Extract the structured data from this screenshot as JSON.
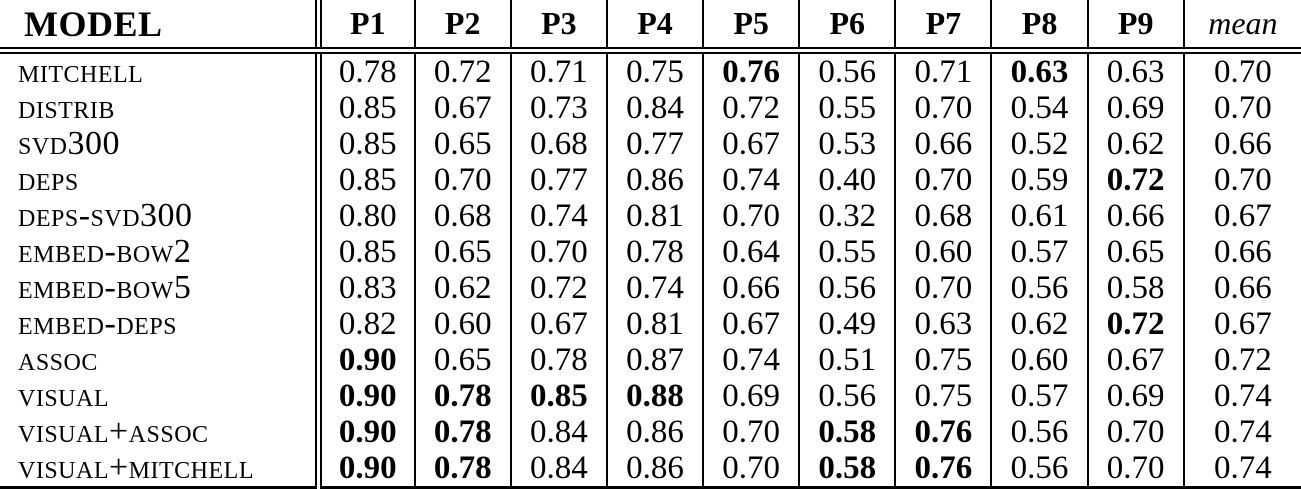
{
  "page": {
    "background_color": "#ffffff",
    "text_color": "#000000",
    "rule_color": "#000000"
  },
  "table": {
    "columns": [
      {
        "label": "MODEL",
        "style": "model-header"
      },
      {
        "label": "P1"
      },
      {
        "label": "P2"
      },
      {
        "label": "P3"
      },
      {
        "label": "P4"
      },
      {
        "label": "P5"
      },
      {
        "label": "P6"
      },
      {
        "label": "P7"
      },
      {
        "label": "P8"
      },
      {
        "label": "P9"
      },
      {
        "label": "mean",
        "style": "italic"
      }
    ],
    "rows": [
      {
        "model": "MITCHELL",
        "values": [
          "0.78",
          "0.72",
          "0.71",
          "0.75",
          "0.76",
          "0.56",
          "0.71",
          "0.63",
          "0.63",
          "0.70"
        ],
        "bold_cols": [
          4,
          7
        ]
      },
      {
        "model": "DISTRIB",
        "values": [
          "0.85",
          "0.67",
          "0.73",
          "0.84",
          "0.72",
          "0.55",
          "0.70",
          "0.54",
          "0.69",
          "0.70"
        ],
        "bold_cols": []
      },
      {
        "model": "SVD300",
        "values": [
          "0.85",
          "0.65",
          "0.68",
          "0.77",
          "0.67",
          "0.53",
          "0.66",
          "0.52",
          "0.62",
          "0.66"
        ],
        "bold_cols": []
      },
      {
        "model": "DEPS",
        "values": [
          "0.85",
          "0.70",
          "0.77",
          "0.86",
          "0.74",
          "0.40",
          "0.70",
          "0.59",
          "0.72",
          "0.70"
        ],
        "bold_cols": [
          8
        ]
      },
      {
        "model": "DEPS-SVD300",
        "values": [
          "0.80",
          "0.68",
          "0.74",
          "0.81",
          "0.70",
          "0.32",
          "0.68",
          "0.61",
          "0.66",
          "0.67"
        ],
        "bold_cols": []
      },
      {
        "model": "EMBED-BOW2",
        "values": [
          "0.85",
          "0.65",
          "0.70",
          "0.78",
          "0.64",
          "0.55",
          "0.60",
          "0.57",
          "0.65",
          "0.66"
        ],
        "bold_cols": []
      },
      {
        "model": "EMBED-BOW5",
        "values": [
          "0.83",
          "0.62",
          "0.72",
          "0.74",
          "0.66",
          "0.56",
          "0.70",
          "0.56",
          "0.58",
          "0.66"
        ],
        "bold_cols": []
      },
      {
        "model": "EMBED-DEPS",
        "values": [
          "0.82",
          "0.60",
          "0.67",
          "0.81",
          "0.67",
          "0.49",
          "0.63",
          "0.62",
          "0.72",
          "0.67"
        ],
        "bold_cols": [
          8
        ]
      },
      {
        "model": "ASSOC",
        "values": [
          "0.90",
          "0.65",
          "0.78",
          "0.87",
          "0.74",
          "0.51",
          "0.75",
          "0.60",
          "0.67",
          "0.72"
        ],
        "bold_cols": [
          0
        ]
      },
      {
        "model": "VISUAL",
        "values": [
          "0.90",
          "0.78",
          "0.85",
          "0.88",
          "0.69",
          "0.56",
          "0.75",
          "0.57",
          "0.69",
          "0.74"
        ],
        "bold_cols": [
          0,
          1,
          2,
          3
        ]
      },
      {
        "model": "VISUAL+ASSOC",
        "values": [
          "0.90",
          "0.78",
          "0.84",
          "0.86",
          "0.70",
          "0.58",
          "0.76",
          "0.56",
          "0.70",
          "0.74"
        ],
        "bold_cols": [
          0,
          1,
          5,
          6
        ]
      },
      {
        "model": "VISUAL+MITCHELL",
        "values": [
          "0.90",
          "0.78",
          "0.84",
          "0.86",
          "0.70",
          "0.58",
          "0.76",
          "0.56",
          "0.70",
          "0.74"
        ],
        "bold_cols": [
          0,
          1,
          5,
          6
        ]
      }
    ]
  }
}
